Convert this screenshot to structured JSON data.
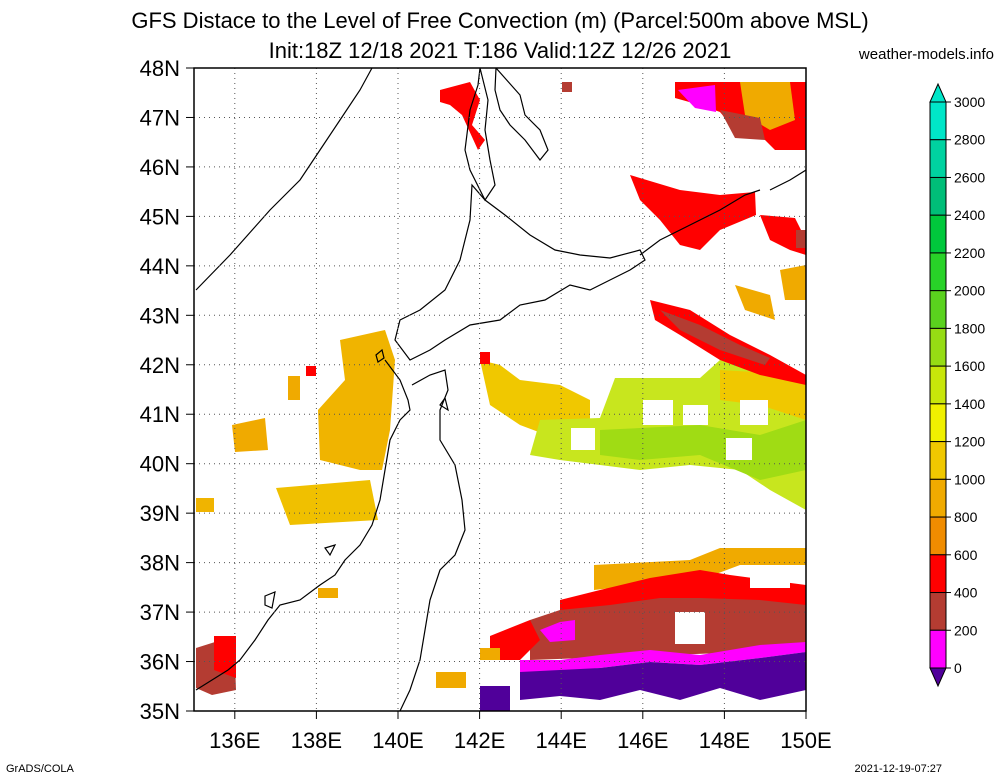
{
  "header": {
    "title": "GFS Distace to the Level of Free Convection (m) (Parcel:500m above MSL)",
    "subtitle": "Init:18Z 12/18 2021 T:186 Valid:12Z 12/26 2021",
    "site": "weather-models.info"
  },
  "map": {
    "lat_labels": [
      "48N",
      "47N",
      "46N",
      "45N",
      "44N",
      "43N",
      "42N",
      "41N",
      "40N",
      "39N",
      "38N",
      "37N",
      "36N",
      "35N"
    ],
    "lon_labels": [
      "136E",
      "138E",
      "140E",
      "142E",
      "144E",
      "146E",
      "148E",
      "150E"
    ],
    "region": "Northern Japan / Hokkaido",
    "lat_range": [
      35,
      48
    ],
    "lon_range": [
      135,
      150
    ]
  },
  "colorbar": {
    "labels": [
      "3000",
      "2800",
      "2600",
      "2400",
      "2200",
      "2000",
      "1800",
      "1600",
      "1400",
      "1200",
      "1000",
      "800",
      "600",
      "400",
      "200",
      "0"
    ],
    "colors": [
      "#00e6c8",
      "#00d2a0",
      "#00be78",
      "#00c83c",
      "#28d228",
      "#5ad21e",
      "#96dc14",
      "#c8e60a",
      "#f0f000",
      "#f0c800",
      "#f0aa00",
      "#f08c00",
      "#ff0000",
      "#b43c32",
      "#ff00ff",
      "#50009a"
    ]
  },
  "footer": {
    "left": "GrADS/COLA",
    "right": "2021-12-19-07:27"
  }
}
